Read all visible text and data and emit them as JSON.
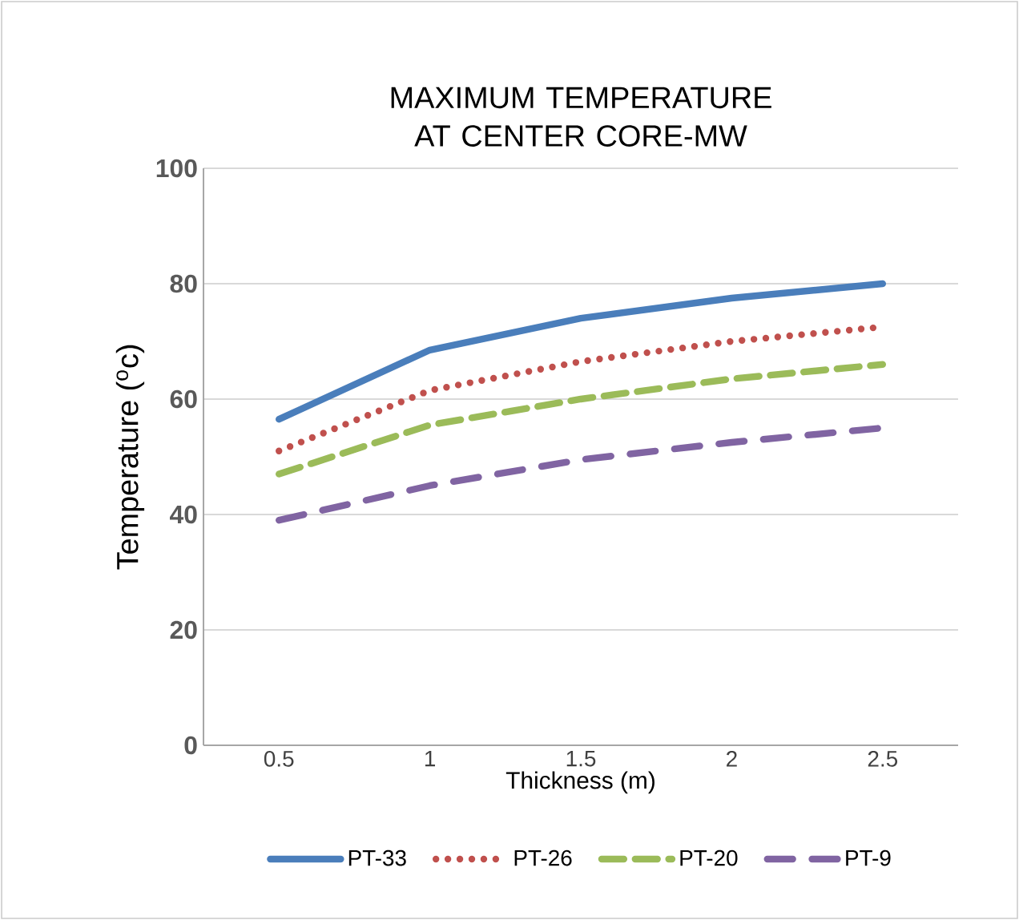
{
  "chart_data": {
    "type": "line",
    "title": "MAXIMUM  TEMPERATURE AT CENTER CORE-MW",
    "xlabel": "Thickness  (m)",
    "ylabel": "Temperature ($^{o}$c)",
    "categories": [
      "0.5",
      "1",
      "1.5",
      "2",
      "2.5"
    ],
    "series": [
      {
        "name": "PT-33",
        "color": "#4a7ebb",
        "line_style": "solid",
        "values": [
          56.5,
          68.5,
          74,
          77.5,
          80
        ]
      },
      {
        "name": "PT-26",
        "color": "#c0504d",
        "line_style": "dotted",
        "values": [
          51,
          61.5,
          66.5,
          70,
          72.5
        ]
      },
      {
        "name": "PT-20",
        "color": "#9bbb59",
        "line_style": "dashed",
        "values": [
          47,
          55.5,
          60,
          63.5,
          66
        ]
      },
      {
        "name": "PT-9",
        "color": "#8064a2",
        "line_style": "dashdot",
        "values": [
          39,
          45,
          49.5,
          52.5,
          55
        ]
      }
    ],
    "ylim": [
      0,
      100
    ],
    "yticks": [
      0,
      20,
      40,
      60,
      80,
      100
    ],
    "grid": "y",
    "legend": "bottom"
  }
}
